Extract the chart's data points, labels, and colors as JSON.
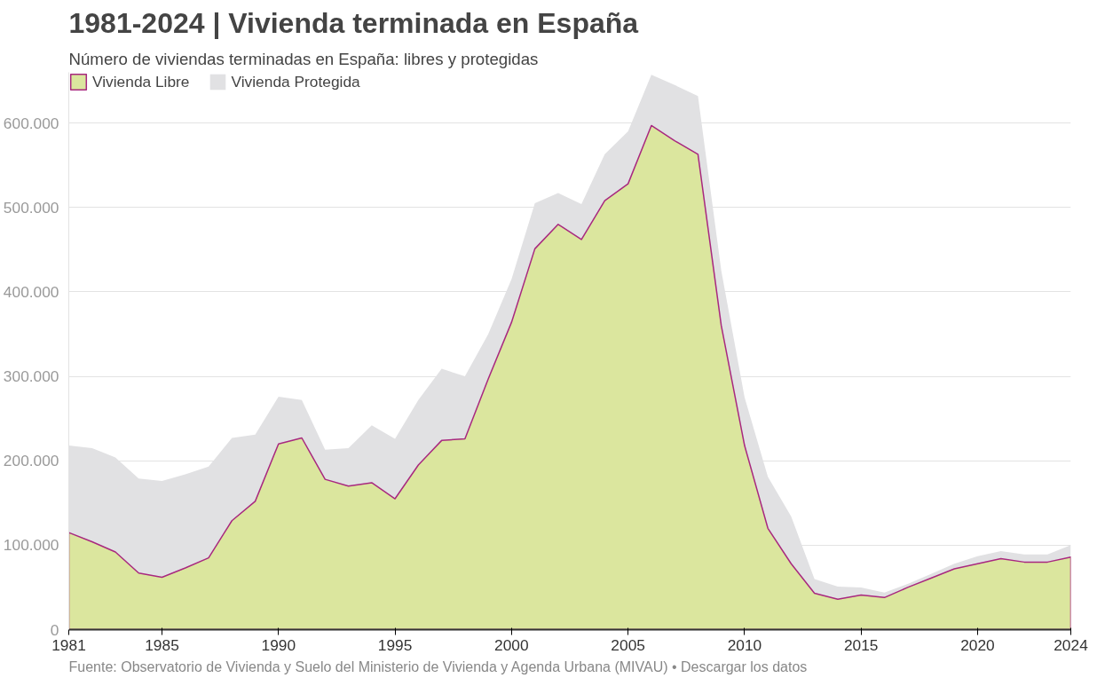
{
  "chart_data": {
    "type": "area",
    "stacked": true,
    "title": "1981-2024 | Vivienda terminada en España",
    "subtitle": "Número de viviendas terminadas en España: libres y protegidas",
    "x": [
      1981,
      1982,
      1983,
      1984,
      1985,
      1986,
      1987,
      1988,
      1989,
      1990,
      1991,
      1992,
      1993,
      1994,
      1995,
      1996,
      1997,
      1998,
      1999,
      2000,
      2001,
      2002,
      2003,
      2004,
      2005,
      2006,
      2007,
      2008,
      2009,
      2010,
      2011,
      2012,
      2013,
      2014,
      2015,
      2016,
      2017,
      2018,
      2019,
      2020,
      2021,
      2022,
      2023,
      2024
    ],
    "series": [
      {
        "name": "Vivienda Libre",
        "color": "#dbe69e",
        "values": [
          115000,
          104000,
          92000,
          67000,
          62000,
          73000,
          85000,
          129000,
          152000,
          220000,
          227000,
          178000,
          170000,
          174000,
          155000,
          195000,
          224000,
          226000,
          297000,
          364000,
          451000,
          480000,
          462000,
          508000,
          528000,
          597000,
          579000,
          563000,
          360000,
          218000,
          120000,
          78000,
          43000,
          36000,
          41000,
          38000,
          50000,
          61000,
          72000,
          78000,
          84000,
          80000,
          80000,
          86000
        ]
      },
      {
        "name": "Vivienda Protegida",
        "color": "#e1e1e3",
        "values": [
          103000,
          111000,
          112000,
          112000,
          114000,
          111000,
          108000,
          98000,
          79000,
          56000,
          45000,
          35000,
          45000,
          68000,
          71000,
          77000,
          85000,
          74000,
          53000,
          51000,
          54000,
          37000,
          42000,
          55000,
          62000,
          60000,
          66000,
          69000,
          65000,
          57000,
          61000,
          56000,
          17000,
          15000,
          9000,
          6000,
          4000,
          5000,
          6000,
          9000,
          9000,
          9000,
          9000,
          14000
        ]
      }
    ],
    "xlim": [
      1981,
      2024
    ],
    "xticks": [
      1981,
      1985,
      1990,
      1995,
      2000,
      2005,
      2010,
      2015,
      2020,
      2024
    ],
    "ylim": [
      0,
      660000
    ],
    "yticks": [
      0,
      {
        "value": 100000,
        "label": "100.000"
      },
      {
        "value": 200000,
        "label": "200.000"
      },
      {
        "value": 300000,
        "label": "300.000"
      },
      {
        "value": 400000,
        "label": "400.000"
      },
      {
        "value": 500000,
        "label": "500.000"
      },
      {
        "value": 600000,
        "label": "600.000"
      }
    ],
    "grid": "y",
    "legend": "top left",
    "annotations": [
      "Fuente: Observatorio de Vivienda y Suelo del Ministerio de Vivienda y Agenda Urbana (MIVAU) • Descargar los datos"
    ]
  }
}
